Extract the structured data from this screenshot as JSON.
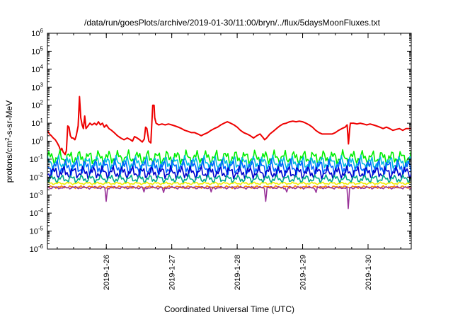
{
  "chart_data": {
    "type": "line",
    "title": "/data/run/goesPlots/archive/2019-01-30/11:00/bryn/../flux/5daysMoonFluxes.txt",
    "xlabel": "Coordinated Universal Time (UTC)",
    "ylabel": {
      "prefix": "protons/cm",
      "sup": "2",
      "suffix": "-s-sr-MeV"
    },
    "xlim": [
      25.0,
      30.56
    ],
    "ylim": [
      1e-06,
      1000000.0
    ],
    "yscale": "log",
    "grid": false,
    "x_ticks": [
      {
        "x": 25.9,
        "label": "2019-1-26"
      },
      {
        "x": 26.9,
        "label": "2019-1-27"
      },
      {
        "x": 27.9,
        "label": "2019-1-28"
      },
      {
        "x": 28.9,
        "label": "2019-1-29"
      },
      {
        "x": 29.9,
        "label": "2019-1-30"
      }
    ],
    "y_ticks": [
      {
        "value": 1e-06,
        "base": "10",
        "exp": "-6"
      },
      {
        "value": 1e-05,
        "base": "10",
        "exp": "-5"
      },
      {
        "value": 0.0001,
        "base": "10",
        "exp": "-4"
      },
      {
        "value": 0.001,
        "base": "10",
        "exp": "-3"
      },
      {
        "value": 0.01,
        "base": "10",
        "exp": "-2"
      },
      {
        "value": 0.1,
        "base": "10",
        "exp": "-1"
      },
      {
        "value": 1,
        "base": "10",
        "exp": "0"
      },
      {
        "value": 10,
        "base": "10",
        "exp": "1"
      },
      {
        "value": 100,
        "base": "10",
        "exp": "2"
      },
      {
        "value": 1000,
        "base": "10",
        "exp": "3"
      },
      {
        "value": 10000,
        "base": "10",
        "exp": "4"
      },
      {
        "value": 100000,
        "base": "10",
        "exp": "5"
      },
      {
        "value": 1000000,
        "base": "10",
        "exp": "6"
      }
    ],
    "series": [
      {
        "color": "#ee0000",
        "points": [
          [
            25.0,
            4
          ],
          [
            25.03,
            2.5
          ],
          [
            25.06,
            2
          ],
          [
            25.09,
            1.5
          ],
          [
            25.12,
            1.2
          ],
          [
            25.15,
            0.8
          ],
          [
            25.18,
            0.5
          ],
          [
            25.2,
            0.3
          ],
          [
            25.22,
            0.4
          ],
          [
            25.24,
            0.25
          ],
          [
            25.27,
            0.18
          ],
          [
            25.29,
            0.3
          ],
          [
            25.31,
            7
          ],
          [
            25.33,
            6
          ],
          [
            25.35,
            2
          ],
          [
            25.37,
            1.5
          ],
          [
            25.39,
            1.5
          ],
          [
            25.42,
            1.2
          ],
          [
            25.44,
            2
          ],
          [
            25.47,
            7
          ],
          [
            25.49,
            300
          ],
          [
            25.51,
            20
          ],
          [
            25.53,
            8
          ],
          [
            25.55,
            5
          ],
          [
            25.57,
            25
          ],
          [
            25.59,
            5
          ],
          [
            25.62,
            7
          ],
          [
            25.65,
            10
          ],
          [
            25.68,
            8
          ],
          [
            25.72,
            10
          ],
          [
            25.75,
            8
          ],
          [
            25.78,
            12
          ],
          [
            25.81,
            8
          ],
          [
            25.84,
            10
          ],
          [
            25.87,
            6
          ],
          [
            25.9,
            8
          ],
          [
            25.94,
            5
          ],
          [
            25.98,
            4
          ],
          [
            26.02,
            3
          ],
          [
            26.07,
            2
          ],
          [
            26.12,
            1.5
          ],
          [
            26.17,
            1.2
          ],
          [
            26.22,
            1.5
          ],
          [
            26.27,
            1.2
          ],
          [
            26.3,
            1
          ],
          [
            26.33,
            1.8
          ],
          [
            26.37,
            1.5
          ],
          [
            26.41,
            1.2
          ],
          [
            26.45,
            0.9
          ],
          [
            26.48,
            1.3
          ],
          [
            26.5,
            6
          ],
          [
            26.52,
            5
          ],
          [
            26.55,
            1
          ],
          [
            26.58,
            0.8
          ],
          [
            26.61,
            100
          ],
          [
            26.63,
            100
          ],
          [
            26.64,
            20
          ],
          [
            26.66,
            10
          ],
          [
            26.7,
            8
          ],
          [
            26.75,
            9
          ],
          [
            26.8,
            8
          ],
          [
            26.85,
            9
          ],
          [
            26.9,
            8
          ],
          [
            26.95,
            7
          ],
          [
            27.0,
            6
          ],
          [
            27.05,
            5
          ],
          [
            27.1,
            4
          ],
          [
            27.15,
            3.5
          ],
          [
            27.2,
            3
          ],
          [
            27.25,
            3
          ],
          [
            27.3,
            2.5
          ],
          [
            27.35,
            2
          ],
          [
            27.4,
            2.5
          ],
          [
            27.45,
            3
          ],
          [
            27.5,
            4
          ],
          [
            27.55,
            5
          ],
          [
            27.6,
            6
          ],
          [
            27.65,
            8
          ],
          [
            27.7,
            10
          ],
          [
            27.75,
            12
          ],
          [
            27.8,
            10
          ],
          [
            27.85,
            8
          ],
          [
            27.9,
            6
          ],
          [
            27.95,
            4
          ],
          [
            28.0,
            3
          ],
          [
            28.05,
            2.5
          ],
          [
            28.1,
            2
          ],
          [
            28.15,
            1.5
          ],
          [
            28.2,
            2
          ],
          [
            28.25,
            2.5
          ],
          [
            28.3,
            1.5
          ],
          [
            28.32,
            1.2
          ],
          [
            28.35,
            1.5
          ],
          [
            28.4,
            2.5
          ],
          [
            28.45,
            3.5
          ],
          [
            28.5,
            5
          ],
          [
            28.55,
            7
          ],
          [
            28.6,
            9
          ],
          [
            28.65,
            10
          ],
          [
            28.7,
            12
          ],
          [
            28.75,
            13
          ],
          [
            28.8,
            12
          ],
          [
            28.85,
            13
          ],
          [
            28.9,
            12
          ],
          [
            28.95,
            10
          ],
          [
            29.0,
            8
          ],
          [
            29.05,
            6
          ],
          [
            29.1,
            4
          ],
          [
            29.15,
            3
          ],
          [
            29.2,
            2.5
          ],
          [
            29.25,
            2.5
          ],
          [
            29.3,
            2.5
          ],
          [
            29.35,
            2.5
          ],
          [
            29.4,
            3
          ],
          [
            29.45,
            4
          ],
          [
            29.5,
            5
          ],
          [
            29.55,
            6
          ],
          [
            29.58,
            8
          ],
          [
            29.6,
            0.7
          ],
          [
            29.62,
            5
          ],
          [
            29.63,
            10
          ],
          [
            29.68,
            10
          ],
          [
            29.73,
            9
          ],
          [
            29.78,
            10
          ],
          [
            29.83,
            9
          ],
          [
            29.88,
            8
          ],
          [
            29.93,
            9
          ],
          [
            29.98,
            8
          ],
          [
            30.03,
            7
          ],
          [
            30.08,
            6
          ],
          [
            30.13,
            5
          ],
          [
            30.18,
            6
          ],
          [
            30.23,
            5
          ],
          [
            30.28,
            4
          ],
          [
            30.33,
            4.5
          ],
          [
            30.38,
            5
          ],
          [
            30.43,
            4
          ],
          [
            30.48,
            5
          ],
          [
            30.53,
            5
          ],
          [
            30.56,
            5
          ]
        ]
      },
      {
        "color": "#00ee00",
        "base": 0.12,
        "amp": 0.45,
        "phase": 0.0
      },
      {
        "color": "#00bbdd",
        "base": 0.06,
        "amp": 0.45,
        "phase": 1.1
      },
      {
        "color": "#0066ff",
        "base": 0.035,
        "amp": 0.5,
        "phase": 2.3
      },
      {
        "color": "#0000cc",
        "base": 0.018,
        "amp": 0.4,
        "phase": 3.7
      },
      {
        "color": "#00aa88",
        "base": 0.008,
        "amp": 0.25,
        "phase": 4.9
      },
      {
        "color": "#eeee00",
        "base": 0.0045,
        "amp": 0.08,
        "phase": 0.7
      },
      {
        "color": "#ff8800",
        "base": 0.0028,
        "amp": 0.08,
        "phase": 5.4
      },
      {
        "color": "#993399",
        "base": 0.0026,
        "amp": 0.08,
        "phase": 2.9,
        "dips": [
          [
            25.9,
            0.00045
          ],
          [
            28.34,
            0.00045
          ],
          [
            29.6,
            0.00018
          ],
          [
            26.47,
            0.0015
          ],
          [
            26.77,
            0.0014
          ],
          [
            27.5,
            0.0015
          ],
          [
            28.65,
            0.0015
          ],
          [
            29.1,
            0.0014
          ]
        ]
      }
    ]
  }
}
